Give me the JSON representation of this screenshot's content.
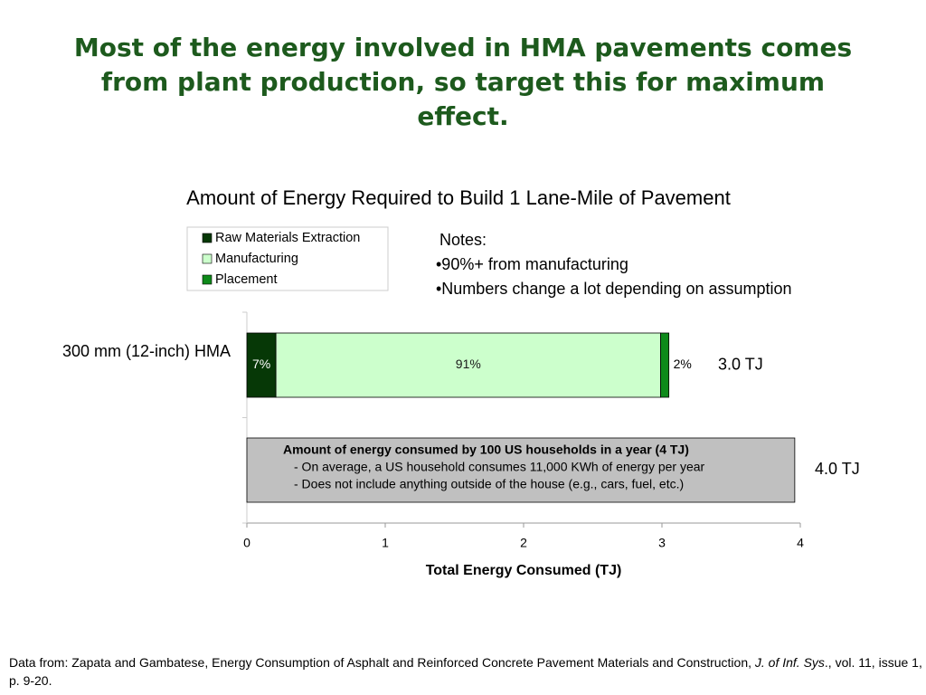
{
  "slide_title": "Most of the energy involved in HMA pavements comes from plant production, so target this for maximum effect.",
  "chart_data": {
    "type": "stacked-barh",
    "title": "Amount of Energy Required to Build 1 Lane-Mile of Pavement",
    "categories": [
      "300 mm (12-inch) HMA"
    ],
    "series": [
      {
        "name": "Raw Materials Extraction",
        "color": "#063806",
        "values": [
          0.21
        ],
        "value_labels": [
          "7%"
        ],
        "label_color": "#ffffff"
      },
      {
        "name": "Manufacturing",
        "color": "#ccffcc",
        "values": [
          2.78
        ],
        "value_labels": [
          "91%"
        ],
        "label_color": "#1a1a1a"
      },
      {
        "name": "Placement",
        "color": "#0e8a1a",
        "values": [
          0.06
        ],
        "value_labels": [
          "2%"
        ],
        "label_color": "#000000"
      }
    ],
    "total_labels": [
      "3.0 TJ"
    ],
    "reference": {
      "values": [
        3.96
      ],
      "color": "#c0c0c0",
      "lines": [
        "Amount of energy consumed by 100 US households in a year (4 TJ)",
        "- On average, a US household consumes 11,000 KWh of energy per year",
        "- Does not include anything outside of the house (e.g., cars, fuel, etc.)"
      ],
      "total_label": "4.0 TJ"
    },
    "xlim": [
      0,
      4
    ],
    "xticks": [
      0,
      1,
      2,
      3,
      4
    ],
    "xlabel": "Total Energy Consumed (TJ)",
    "legend": "top-left",
    "notes": {
      "title": "Notes:",
      "items": [
        "•90%+ from manufacturing",
        "•Numbers change a lot depending on assumption"
      ]
    }
  },
  "footer": {
    "before": "Data from: Zapata and Gambatese, Energy Consumption of Asphalt and Reinforced Concrete Pavement Materials and Construction, ",
    "journal": "J. of Inf. Sys",
    "after": "., vol. 11, issue 1, p. 9-20."
  }
}
